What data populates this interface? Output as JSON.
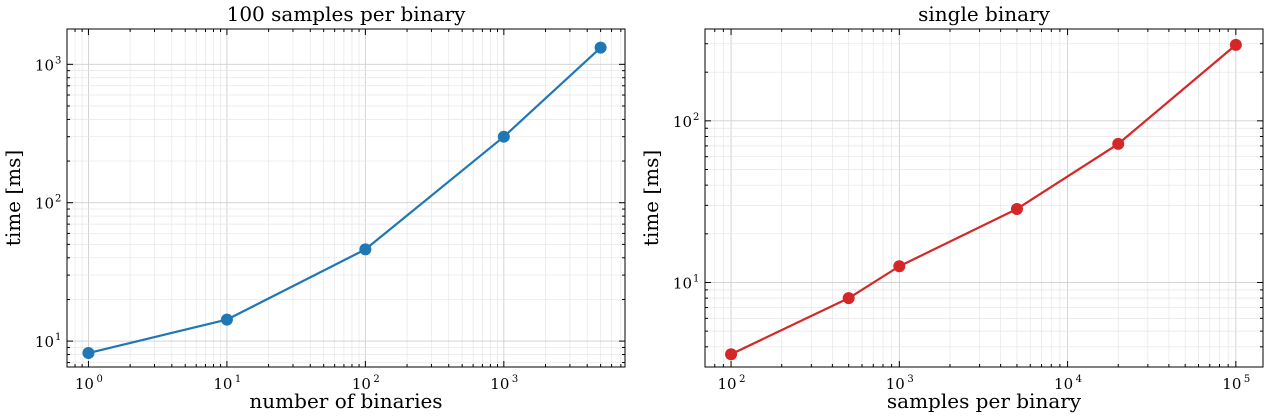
{
  "chart_data": [
    {
      "type": "line",
      "title": "100 samples per binary",
      "xlabel": "number of binaries",
      "ylabel": "time [ms]",
      "xscale": "log",
      "yscale": "log",
      "xlim": [
        0.7,
        7500
      ],
      "ylim": [
        6.5,
        1800
      ],
      "grid": true,
      "marker": "circle",
      "color": "#1f77b4",
      "x_ticks": [
        {
          "base": "10",
          "exp": "0"
        },
        {
          "base": "10",
          "exp": "1"
        },
        {
          "base": "10",
          "exp": "2"
        },
        {
          "base": "10",
          "exp": "3"
        }
      ],
      "y_ticks": [
        {
          "base": "10",
          "exp": "1"
        },
        {
          "base": "10",
          "exp": "2"
        },
        {
          "base": "10",
          "exp": "3"
        }
      ],
      "series": [
        {
          "x": [
            1,
            10,
            100,
            1000,
            5000
          ],
          "y": [
            8.2,
            14.3,
            46,
            300,
            1320
          ]
        }
      ]
    },
    {
      "type": "line",
      "title": "single binary",
      "xlabel": "samples per binary",
      "ylabel": "time [ms]",
      "xscale": "log",
      "yscale": "log",
      "xlim": [
        70,
        145000
      ],
      "ylim": [
        3.0,
        370
      ],
      "grid": true,
      "marker": "circle",
      "color": "#d62728",
      "x_ticks": [
        {
          "base": "10",
          "exp": "2"
        },
        {
          "base": "10",
          "exp": "3"
        },
        {
          "base": "10",
          "exp": "4"
        },
        {
          "base": "10",
          "exp": "5"
        }
      ],
      "y_ticks": [
        {
          "base": "10",
          "exp": "1"
        },
        {
          "base": "10",
          "exp": "2"
        }
      ],
      "series": [
        {
          "x": [
            100,
            500,
            1000,
            5000,
            20000,
            100000
          ],
          "y": [
            3.6,
            8.0,
            12.6,
            28.5,
            72,
            295
          ]
        }
      ]
    }
  ]
}
